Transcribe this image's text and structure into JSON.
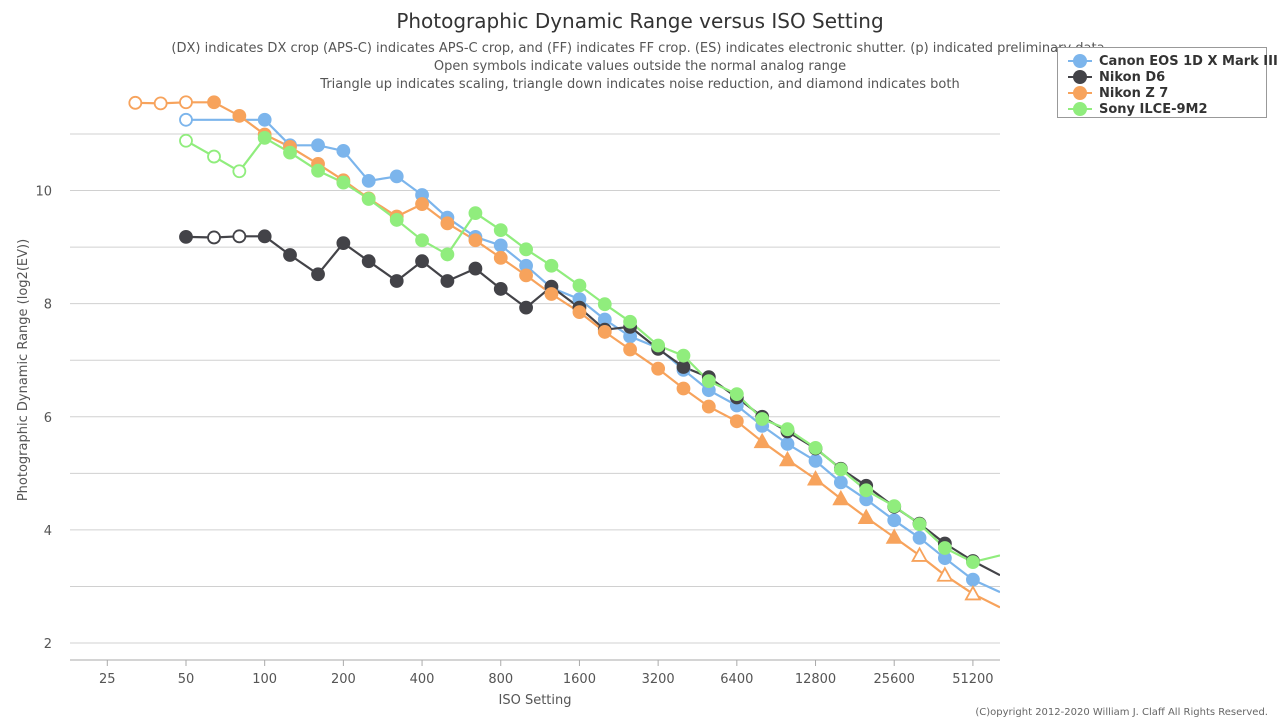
{
  "chart_data": {
    "type": "line",
    "title": "Photographic Dynamic Range versus ISO Setting",
    "subtitle": [
      "(DX) indicates DX crop (APS-C) indicates APS-C crop, and (FF) indicates FF crop. (ES) indicates electronic shutter. (p) indicated preliminary data",
      "Open symbols indicate values outside the normal analog range",
      "Triangle up indicates scaling, triangle down indicates noise reduction, and diamond indicates both"
    ],
    "xlabel": "ISO Setting",
    "ylabel": "Photographic Dynamic Range (log2(EV))",
    "x_scale": "log2",
    "x_ticks": [
      "25",
      "50",
      "100",
      "200",
      "400",
      "800",
      "1600",
      "3200",
      "6400",
      "12800",
      "25600",
      "51200"
    ],
    "x_tick_values": [
      25,
      50,
      100,
      200,
      400,
      800,
      1600,
      3200,
      6400,
      12800,
      25600,
      51200
    ],
    "xlim": [
      18,
      65000
    ],
    "ylim": [
      1.7,
      11.6
    ],
    "y_ticks": [
      2,
      4,
      6,
      8,
      10
    ],
    "grid": true,
    "legend_position": "top-right",
    "series": [
      {
        "name": "Canon EOS 1D X Mark III",
        "color": "#7cb5ec",
        "x": [
          50,
          100,
          125,
          160,
          200,
          250,
          320,
          400,
          500,
          640,
          800,
          1000,
          1250,
          1600,
          2000,
          2500,
          3200,
          4000,
          5000,
          6400,
          8000,
          10000,
          12800,
          16000,
          20000,
          25600,
          32000,
          40000,
          51200,
          65000
        ],
        "y": [
          11.25,
          11.25,
          10.8,
          10.8,
          10.7,
          10.17,
          10.25,
          9.92,
          9.52,
          9.18,
          9.03,
          8.67,
          8.28,
          8.08,
          7.72,
          7.42,
          7.22,
          6.83,
          6.47,
          6.2,
          5.84,
          5.52,
          5.22,
          4.84,
          4.54,
          4.17,
          3.86,
          3.5,
          3.12,
          2.9
        ],
        "open": [
          true,
          false,
          false,
          false,
          false,
          false,
          false,
          false,
          false,
          false,
          false,
          false,
          false,
          false,
          false,
          false,
          false,
          false,
          false,
          false,
          false,
          false,
          false,
          false,
          false,
          false,
          false,
          false,
          false,
          false
        ],
        "marker": [
          "circle",
          "circle",
          "circle",
          "circle",
          "circle",
          "circle",
          "circle",
          "circle",
          "circle",
          "circle",
          "circle",
          "circle",
          "circle",
          "circle",
          "circle",
          "circle",
          "circle",
          "circle",
          "circle",
          "circle",
          "circle",
          "circle",
          "circle",
          "circle",
          "circle",
          "circle",
          "circle",
          "circle",
          "circle",
          "none"
        ]
      },
      {
        "name": "Nikon D6",
        "color": "#434348",
        "x": [
          50,
          64,
          80,
          100,
          125,
          160,
          200,
          250,
          320,
          400,
          500,
          640,
          800,
          1000,
          1250,
          1600,
          2000,
          2500,
          3200,
          4000,
          5000,
          6400,
          8000,
          10000,
          12800,
          16000,
          20000,
          25600,
          32000,
          40000,
          51200,
          65000
        ],
        "y": [
          9.18,
          9.17,
          9.19,
          9.19,
          8.86,
          8.52,
          9.07,
          8.75,
          8.4,
          8.75,
          8.4,
          8.62,
          8.26,
          7.93,
          8.3,
          7.93,
          7.54,
          7.59,
          7.2,
          6.88,
          6.7,
          6.34,
          6.0,
          5.74,
          5.44,
          5.08,
          4.78,
          4.41,
          4.11,
          3.76,
          3.45,
          3.2
        ],
        "open": [
          false,
          true,
          true,
          false,
          false,
          false,
          false,
          false,
          false,
          false,
          false,
          false,
          false,
          false,
          false,
          false,
          false,
          false,
          false,
          false,
          false,
          false,
          false,
          false,
          false,
          false,
          false,
          false,
          false,
          false,
          false,
          false
        ],
        "marker": [
          "circle",
          "circle",
          "circle",
          "circle",
          "circle",
          "circle",
          "circle",
          "circle",
          "circle",
          "circle",
          "circle",
          "circle",
          "circle",
          "circle",
          "circle",
          "circle",
          "circle",
          "circle",
          "circle",
          "circle",
          "circle",
          "circle",
          "circle",
          "circle",
          "circle",
          "circle",
          "circle",
          "circle",
          "circle",
          "circle",
          "circle",
          "none"
        ]
      },
      {
        "name": "Nikon Z 7",
        "color": "#f7a35c",
        "x": [
          32,
          40,
          50,
          64,
          80,
          100,
          125,
          160,
          200,
          250,
          320,
          400,
          500,
          640,
          800,
          1000,
          1250,
          1600,
          2000,
          2500,
          3200,
          4000,
          5000,
          6400,
          8000,
          10000,
          12800,
          16000,
          20000,
          25600,
          32000,
          40000,
          51200,
          65000
        ],
        "y": [
          11.55,
          11.54,
          11.56,
          11.56,
          11.32,
          10.99,
          10.77,
          10.47,
          10.18,
          9.86,
          9.54,
          9.76,
          9.42,
          9.12,
          8.81,
          8.5,
          8.17,
          7.85,
          7.5,
          7.19,
          6.85,
          6.5,
          6.18,
          5.92,
          5.56,
          5.24,
          4.9,
          4.55,
          4.22,
          3.87,
          3.55,
          3.2,
          2.87,
          2.63
        ],
        "open": [
          true,
          true,
          true,
          false,
          false,
          false,
          false,
          false,
          false,
          false,
          false,
          false,
          false,
          false,
          false,
          false,
          false,
          false,
          false,
          false,
          false,
          false,
          false,
          false,
          false,
          false,
          false,
          false,
          false,
          false,
          true,
          true,
          true,
          false
        ],
        "marker": [
          "circle",
          "circle",
          "circle",
          "circle",
          "circle",
          "circle",
          "circle",
          "circle",
          "circle",
          "circle",
          "circle",
          "circle",
          "circle",
          "circle",
          "circle",
          "circle",
          "circle",
          "circle",
          "circle",
          "circle",
          "circle",
          "circle",
          "circle",
          "circle",
          "triangle-up",
          "triangle-up",
          "triangle-up",
          "triangle-up",
          "triangle-up",
          "triangle-up",
          "triangle-up",
          "triangle-up",
          "triangle-up",
          "none"
        ]
      },
      {
        "name": "Sony ILCE-9M2",
        "color": "#90ed7d",
        "x": [
          50,
          64,
          80,
          100,
          125,
          160,
          200,
          250,
          320,
          400,
          500,
          640,
          800,
          1000,
          1250,
          1600,
          2000,
          2500,
          3200,
          4000,
          5000,
          6400,
          8000,
          10000,
          12800,
          16000,
          20000,
          25600,
          32000,
          40000,
          51200,
          65000
        ],
        "y": [
          10.88,
          10.6,
          10.34,
          10.93,
          10.67,
          10.35,
          10.14,
          9.85,
          9.48,
          9.12,
          8.87,
          9.6,
          9.3,
          8.96,
          8.67,
          8.32,
          7.99,
          7.68,
          7.26,
          7.08,
          6.63,
          6.4,
          5.96,
          5.78,
          5.45,
          5.07,
          4.7,
          4.42,
          4.1,
          3.68,
          3.43,
          3.55
        ],
        "open": [
          true,
          true,
          true,
          false,
          false,
          false,
          false,
          false,
          false,
          false,
          false,
          false,
          false,
          false,
          false,
          false,
          false,
          false,
          false,
          false,
          false,
          false,
          false,
          false,
          false,
          false,
          false,
          false,
          false,
          false,
          false,
          false
        ],
        "marker": [
          "circle",
          "circle",
          "circle",
          "circle",
          "circle",
          "circle",
          "circle",
          "circle",
          "circle",
          "circle",
          "circle",
          "circle",
          "circle",
          "circle",
          "circle",
          "circle",
          "circle",
          "circle",
          "circle",
          "circle",
          "circle",
          "circle",
          "circle",
          "circle",
          "circle",
          "circle",
          "circle",
          "circle",
          "circle",
          "circle",
          "circle",
          "none"
        ]
      }
    ],
    "copyright": "(C)opyright 2012-2020 William J. Claff All Rights Reserved."
  }
}
